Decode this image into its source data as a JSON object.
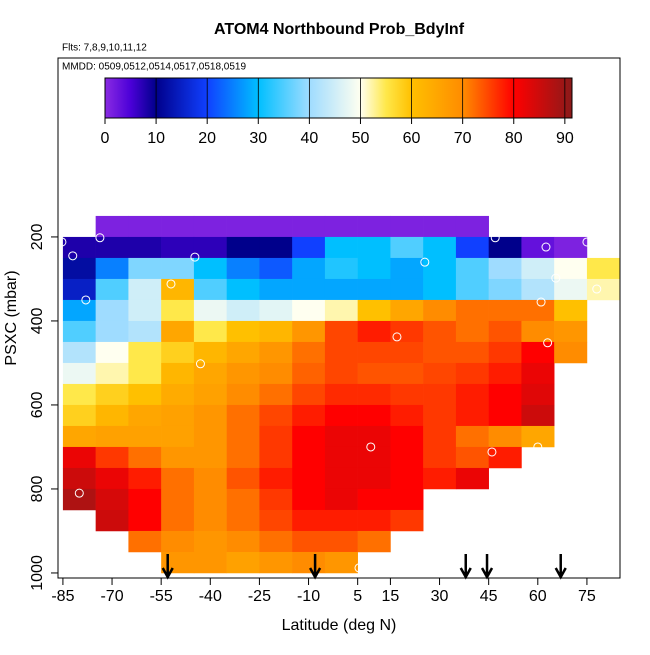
{
  "chart_data": {
    "type": "heatmap",
    "title": "ATOM4 Northbound Prob_BdyInf",
    "subtitle": "Flts: 7,8,9,10,11,12",
    "annotation": "MMDD: 0509,0512,0514,0517,0518,0519",
    "x_label": "Latitude (deg N)",
    "y_label": "PSXC (mbar)",
    "xlim": [
      -86.5,
      85.1
    ],
    "ylim": [
      1012,
      -226
    ],
    "xticks": [
      -85,
      -70,
      -55,
      -40,
      -25,
      -10,
      5,
      15,
      30,
      45,
      60,
      75
    ],
    "yticks": [
      200,
      400,
      600,
      800,
      1000
    ],
    "clim": [
      0,
      91.4
    ],
    "cticks": [
      0,
      10,
      20,
      30,
      40,
      50,
      60,
      70,
      80,
      90
    ],
    "colormap": [
      {
        "value": 0,
        "color": "#8a2be2"
      },
      {
        "value": 5,
        "color": "#4b00d8"
      },
      {
        "value": 10,
        "color": "#00008b"
      },
      {
        "value": 20,
        "color": "#1040ff"
      },
      {
        "value": 30,
        "color": "#00bfff"
      },
      {
        "value": 40,
        "color": "#9fdcff"
      },
      {
        "value": 50,
        "color": "#fffff0"
      },
      {
        "value": 55,
        "color": "#ffe84a"
      },
      {
        "value": 60,
        "color": "#ffc000"
      },
      {
        "value": 70,
        "color": "#ff8c00"
      },
      {
        "value": 80,
        "color": "#ff0000"
      },
      {
        "value": 91.4,
        "color": "#8b1a1a"
      }
    ],
    "x": [
      -80,
      -70,
      -60,
      -50,
      -40,
      -30,
      -20,
      -10,
      0,
      10,
      20,
      30,
      40,
      50,
      60,
      70,
      80
    ],
    "y": [
      175,
      225,
      275,
      325,
      375,
      425,
      475,
      525,
      575,
      625,
      675,
      725,
      775,
      825,
      875,
      925,
      975
    ],
    "z": [
      [
        null,
        1,
        1,
        1,
        1,
        1,
        1,
        1,
        1,
        1,
        1,
        1,
        1,
        null,
        null,
        null,
        null
      ],
      [
        8,
        8,
        8,
        7,
        7,
        10,
        10,
        20,
        30,
        30,
        35,
        30,
        20,
        10,
        3,
        1,
        null
      ],
      [
        12,
        25,
        38,
        38,
        30,
        25,
        22,
        28,
        32,
        30,
        28,
        30,
        35,
        40,
        45,
        50,
        55
      ],
      [
        15,
        35,
        45,
        62,
        35,
        30,
        28,
        28,
        28,
        28,
        28,
        30,
        35,
        38,
        42,
        48,
        52
      ],
      [
        28,
        40,
        45,
        55,
        48,
        45,
        47,
        50,
        52,
        60,
        65,
        70,
        72,
        72,
        72,
        60,
        null
      ],
      [
        35,
        40,
        42,
        65,
        55,
        60,
        62,
        68,
        75,
        78,
        76,
        74,
        72,
        74,
        70,
        68,
        null
      ],
      [
        42,
        50,
        55,
        58,
        62,
        65,
        68,
        72,
        75,
        75,
        75,
        74,
        74,
        76,
        80,
        70,
        null
      ],
      [
        48,
        52,
        55,
        62,
        65,
        68,
        70,
        73,
        75,
        74,
        74,
        75,
        76,
        78,
        82,
        null,
        null
      ],
      [
        55,
        58,
        60,
        64,
        66,
        70,
        72,
        75,
        77,
        77,
        76,
        76,
        78,
        80,
        83,
        null,
        null
      ],
      [
        58,
        62,
        65,
        66,
        68,
        72,
        75,
        78,
        80,
        80,
        78,
        76,
        78,
        80,
        85,
        null,
        null
      ],
      [
        65,
        66,
        66,
        66,
        68,
        72,
        76,
        80,
        82,
        82,
        80,
        76,
        72,
        70,
        65,
        null,
        null
      ],
      [
        82,
        76,
        72,
        68,
        68,
        72,
        76,
        80,
        82,
        82,
        80,
        76,
        74,
        78,
        null,
        null,
        null
      ],
      [
        85,
        82,
        78,
        72,
        70,
        74,
        78,
        80,
        82,
        82,
        80,
        78,
        82,
        null,
        null,
        null,
        null
      ],
      [
        88,
        84,
        80,
        72,
        70,
        72,
        76,
        80,
        82,
        80,
        80,
        null,
        null,
        null,
        null,
        null,
        null
      ],
      [
        null,
        85,
        80,
        72,
        70,
        72,
        75,
        78,
        78,
        78,
        76,
        null,
        null,
        null,
        null,
        null,
        null
      ],
      [
        null,
        null,
        72,
        70,
        68,
        70,
        72,
        74,
        74,
        72,
        null,
        null,
        null,
        null,
        null,
        null,
        null
      ],
      [
        null,
        null,
        null,
        68,
        68,
        66,
        68,
        70,
        68,
        null,
        null,
        null,
        null,
        null,
        null,
        null,
        null
      ]
    ],
    "points": {
      "x": [
        -85.3,
        -73.7,
        -82,
        -44.7,
        25.5,
        47,
        62.5,
        75,
        65.5,
        78,
        -78,
        -52,
        61,
        17,
        63,
        -43,
        9,
        46,
        60,
        -80,
        5.4
      ],
      "y": [
        212,
        202,
        245,
        248,
        260,
        202,
        224,
        212,
        298,
        324,
        350,
        312,
        355,
        438,
        452,
        502,
        700,
        712,
        700,
        810,
        988
      ]
    },
    "arrows_x": [
      -53,
      -8,
      38,
      44.5,
      67
    ]
  }
}
